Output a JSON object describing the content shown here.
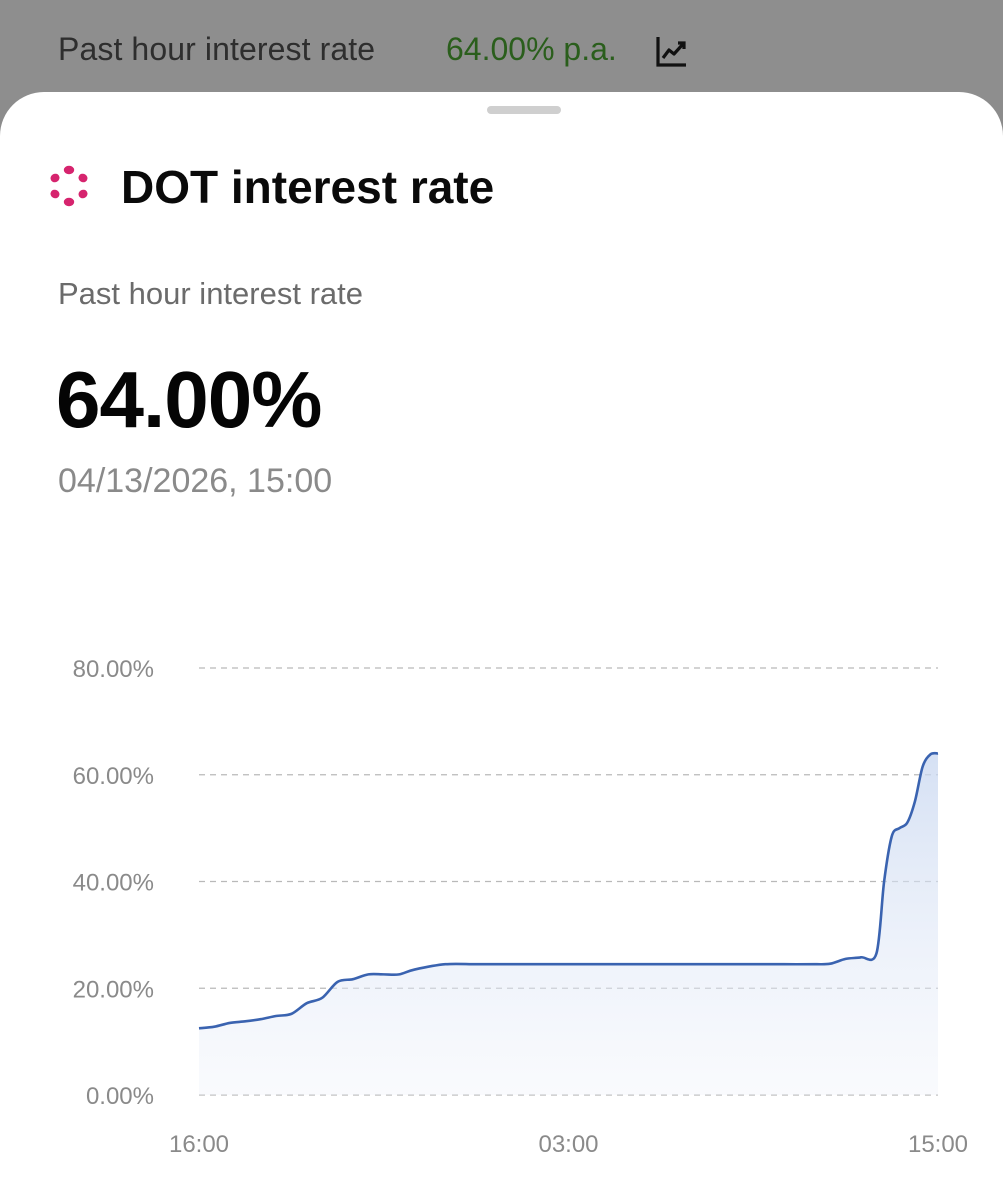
{
  "header": {
    "label": "Past hour interest rate",
    "rate": "64.00% p.a.",
    "rate_color": "#2a5e1c",
    "icon": "chart-trend-icon"
  },
  "sheet": {
    "title": "DOT interest rate",
    "token_icon": "polkadot-logo-icon",
    "token_color": "#e6007a",
    "rate_caption": "Past hour interest rate",
    "rate_value": "64.00%",
    "timestamp": "04/13/2026, 15:00"
  },
  "chart_data": {
    "type": "area",
    "title": "",
    "xlabel": "",
    "ylabel": "",
    "x_ticks": [
      "16:00",
      "03:00",
      "15:00"
    ],
    "y_ticks": [
      "0.00%",
      "20.00%",
      "40.00%",
      "60.00%",
      "80.00%"
    ],
    "ylim": [
      0,
      80
    ],
    "grid": true,
    "line_color": "#3a63b0",
    "series": [
      {
        "x": [
          0,
          0.5,
          1,
          1.5,
          2,
          2.5,
          3,
          3.5,
          4,
          4.5,
          5,
          5.5,
          6,
          6.5,
          7,
          8,
          9,
          10,
          11,
          12,
          13,
          14,
          15,
          16,
          17,
          18,
          19,
          20,
          20.5,
          21,
          21.5,
          22,
          22.25,
          22.5,
          22.75,
          23,
          23.25,
          23.5,
          23.75,
          24
        ],
        "y": [
          12.5,
          12.8,
          13.5,
          13.8,
          14.2,
          14.8,
          15.2,
          17.2,
          18.2,
          21.2,
          21.7,
          22.6,
          22.6,
          22.6,
          23.5,
          24.5,
          24.5,
          24.5,
          24.5,
          24.5,
          24.5,
          24.5,
          24.5,
          24.5,
          24.5,
          24.5,
          24.5,
          24.5,
          24.6,
          25.5,
          25.8,
          26.5,
          40,
          48.5,
          50,
          51,
          55,
          61.5,
          63.8,
          64
        ]
      }
    ]
  }
}
